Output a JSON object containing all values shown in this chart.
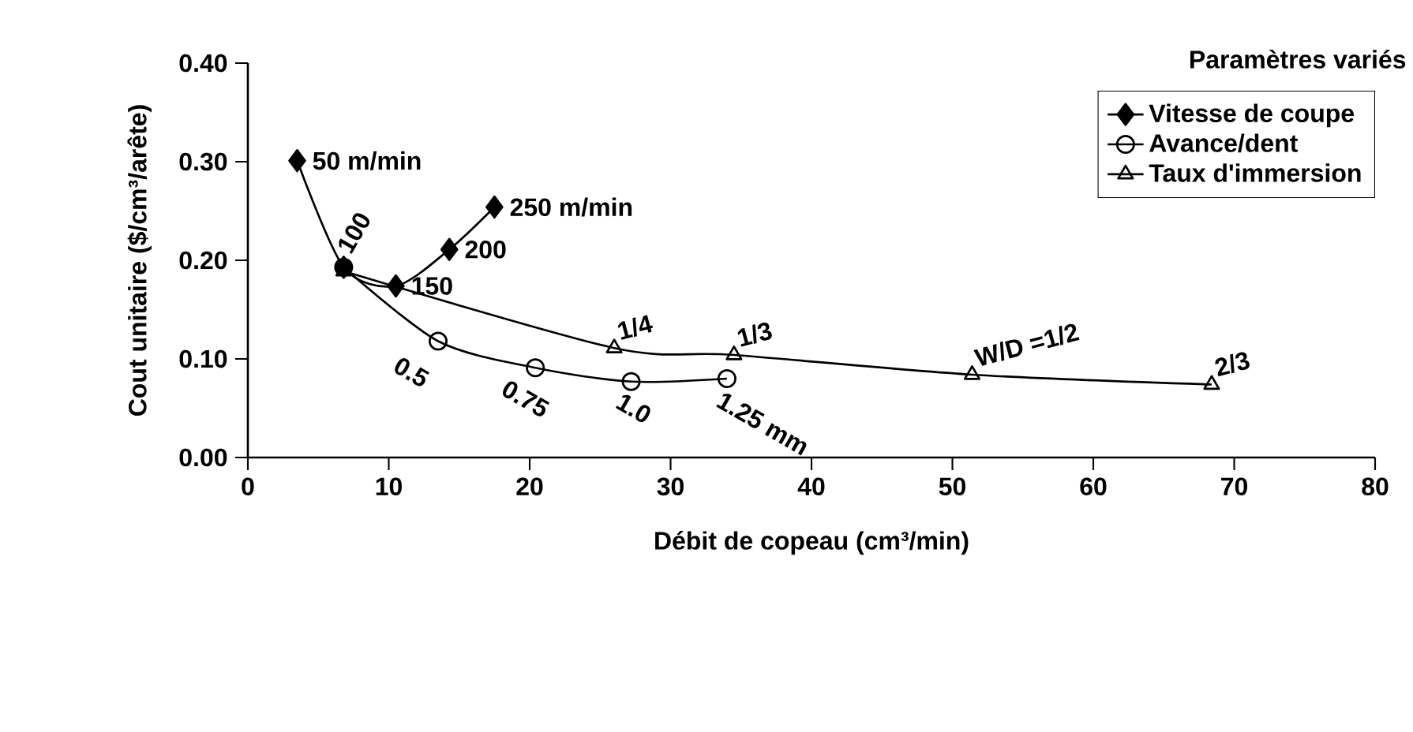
{
  "chart_data": {
    "type": "line",
    "xlabel": "Débit de copeau  (cm³/min)",
    "ylabel": "Cout unitaire ($/cm³/arête)",
    "legend_title": "Paramètres variés",
    "legend": "top right",
    "grid": false,
    "xlim": [
      0,
      80
    ],
    "ylim": [
      0,
      0.4
    ],
    "xticks": [
      0,
      10,
      20,
      30,
      40,
      50,
      60,
      70,
      80
    ],
    "yticks": [
      {
        "value": 0,
        "label": "0.00"
      },
      {
        "value": 0.1,
        "label": "0.10"
      },
      {
        "value": 0.2,
        "label": "0.20"
      },
      {
        "value": 0.3,
        "label": "0.30"
      },
      {
        "value": 0.4,
        "label": "0.40"
      }
    ],
    "series": [
      {
        "name": "Vitesse de coupe",
        "color": "#000000",
        "marker": "diamond",
        "x": [
          3.5,
          6.8,
          10.5,
          14.3,
          17.5
        ],
        "values": [
          0.301,
          0.193,
          0.174,
          0.211,
          0.254
        ]
      },
      {
        "name": "Avance/dent",
        "color": "#000000",
        "marker": "circle",
        "x": [
          6.8,
          13.5,
          20.4,
          27.2,
          34.0
        ],
        "values": [
          0.193,
          0.118,
          0.091,
          0.077,
          0.08
        ]
      },
      {
        "name": "Taux d'immersion",
        "color": "#000000",
        "marker": "triangle",
        "x": [
          6.8,
          26.0,
          34.5,
          51.4,
          68.4
        ],
        "values": [
          0.189,
          0.111,
          0.104,
          0.084,
          0.074
        ]
      }
    ],
    "annotations": [
      {
        "text": "50 m/min",
        "x": 3.5,
        "y": 0.301
      },
      {
        "text": "100",
        "x": 6.8,
        "y": 0.193
      },
      {
        "text": "150",
        "x": 10.5,
        "y": 0.174
      },
      {
        "text": "200",
        "x": 14.3,
        "y": 0.211
      },
      {
        "text": "250 m/min",
        "x": 17.5,
        "y": 0.254
      },
      {
        "text": "0.5",
        "x": 13.5,
        "y": 0.118
      },
      {
        "text": "0.75",
        "x": 20.4,
        "y": 0.091
      },
      {
        "text": "1.0",
        "x": 27.2,
        "y": 0.077
      },
      {
        "text": "1.25 mm",
        "x": 34.0,
        "y": 0.08
      },
      {
        "text": "1/4",
        "x": 26.0,
        "y": 0.111
      },
      {
        "text": "1/3",
        "x": 34.5,
        "y": 0.104
      },
      {
        "text": "W/D =1/2",
        "x": 51.4,
        "y": 0.084
      },
      {
        "text": "2/3",
        "x": 68.4,
        "y": 0.074
      }
    ]
  }
}
